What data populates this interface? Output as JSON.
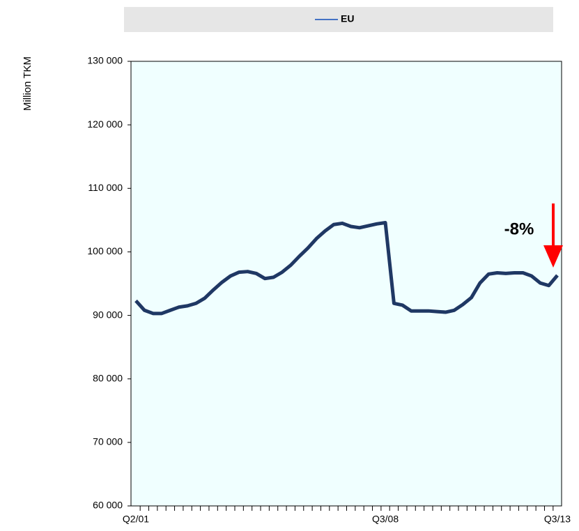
{
  "chart_data": {
    "type": "line",
    "y_label": "Million TKM",
    "categories": [
      "Q2/01",
      null,
      null,
      null,
      null,
      null,
      null,
      null,
      null,
      null,
      null,
      null,
      null,
      null,
      null,
      null,
      null,
      null,
      null,
      null,
      null,
      null,
      null,
      null,
      null,
      null,
      null,
      null,
      null,
      "Q3/08",
      null,
      null,
      null,
      null,
      null,
      null,
      null,
      null,
      null,
      null,
      null,
      null,
      null,
      null,
      null,
      null,
      null,
      null,
      null,
      "Q3/13"
    ],
    "series": [
      {
        "name": "EU",
        "color": "#1f3864",
        "values": [
          92300,
          90800,
          90300,
          90300,
          90800,
          91300,
          91500,
          91900,
          92700,
          94000,
          95200,
          96200,
          96800,
          96900,
          96600,
          95800,
          96000,
          96800,
          97900,
          99300,
          100600,
          102100,
          103300,
          104300,
          104500,
          104000,
          103800,
          104100,
          104400,
          104600,
          91900,
          91600,
          90700,
          90700,
          90700,
          90600,
          90500,
          90800,
          91700,
          92800,
          95100,
          96500,
          96700,
          96600,
          96700,
          96700,
          96200,
          95100,
          94700,
          96300
        ]
      }
    ],
    "ylim": [
      60000,
      130000
    ],
    "yticks": [
      {
        "value": 60000,
        "label": "60 000"
      },
      {
        "value": 70000,
        "label": "70 000"
      },
      {
        "value": 80000,
        "label": "80 000"
      },
      {
        "value": 90000,
        "label": "90 000"
      },
      {
        "value": 100000,
        "label": "100 000"
      },
      {
        "value": 110000,
        "label": "110 000"
      },
      {
        "value": 120000,
        "label": "120 000"
      },
      {
        "value": 130000,
        "label": "130 000"
      }
    ],
    "annotation": "-8%",
    "annotation_color": "#ff0000",
    "plot_background": "#f0ffff"
  }
}
